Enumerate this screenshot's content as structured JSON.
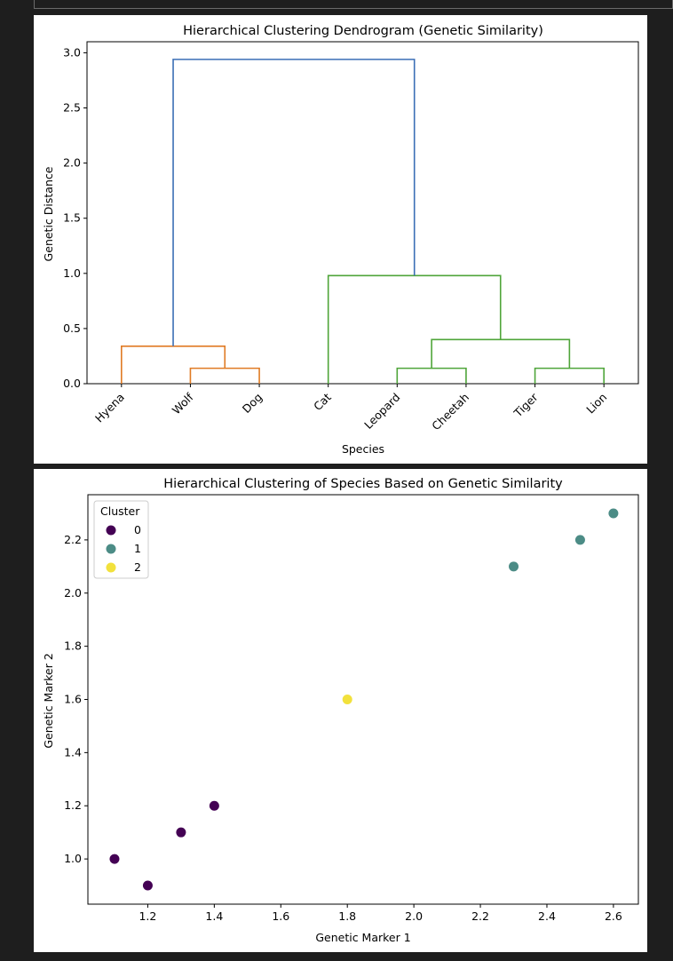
{
  "charts": [
    {
      "type": "dendrogram",
      "title": "Hierarchical Clustering Dendrogram (Genetic Similarity)",
      "xlabel": "Species",
      "ylabel": "Genetic Distance",
      "ylim": [
        0,
        3.1
      ],
      "yticks": [
        "0.0",
        "0.5",
        "1.0",
        "1.5",
        "2.0",
        "2.5",
        "3.0"
      ],
      "ytick_values": [
        0,
        0.5,
        1.0,
        1.5,
        2.0,
        2.5,
        3.0
      ],
      "leaves": [
        "Hyena",
        "Wolf",
        "Dog",
        "Cat",
        "Leopard",
        "Cheetah",
        "Tiger",
        "Lion"
      ],
      "colors": {
        "above_cut": "#3b6fb6",
        "cluster_a": "#e07b24",
        "cluster_b": "#4fa53a"
      },
      "links": [
        {
          "left": 1,
          "right": 2,
          "height": 0.14,
          "color": "cluster_a"
        },
        {
          "left": 4,
          "right": 5,
          "height": 0.14,
          "color": "cluster_b"
        },
        {
          "left": 6,
          "right": 7,
          "height": 0.14,
          "color": "cluster_b"
        },
        {
          "left": 0,
          "right": "w-d",
          "height": 0.34,
          "color": "cluster_a"
        },
        {
          "left": "l-c",
          "right": "t-l",
          "height": 0.4,
          "color": "cluster_b"
        },
        {
          "left": 3,
          "right": "lc-tl",
          "height": 0.98,
          "color": "cluster_b"
        },
        {
          "left": "hwd",
          "right": "cat-group",
          "height": 2.94,
          "color": "above_cut"
        }
      ]
    },
    {
      "type": "scatter",
      "title": "Hierarchical Clustering of Species Based on Genetic Similarity",
      "xlabel": "Genetic Marker 1",
      "ylabel": "Genetic Marker 2",
      "xlim": [
        1.02,
        2.675
      ],
      "ylim": [
        0.83,
        2.37
      ],
      "xticks": [
        "1.2",
        "1.4",
        "1.6",
        "1.8",
        "2.0",
        "2.2",
        "2.4",
        "2.6"
      ],
      "xtick_values": [
        1.2,
        1.4,
        1.6,
        1.8,
        2.0,
        2.2,
        2.4,
        2.6
      ],
      "yticks": [
        "1.0",
        "1.2",
        "1.4",
        "1.6",
        "1.8",
        "2.0",
        "2.2"
      ],
      "ytick_values": [
        1.0,
        1.2,
        1.4,
        1.6,
        1.8,
        2.0,
        2.2
      ],
      "legend": {
        "title": "Cluster",
        "placement": "top-left",
        "entries": [
          "0",
          "1",
          "2"
        ]
      },
      "cluster_colors": {
        "0": "#440154",
        "1": "#4c8c86",
        "2": "#f2e13c"
      },
      "points": [
        {
          "x": 1.1,
          "y": 1.0,
          "cluster": "0"
        },
        {
          "x": 1.2,
          "y": 0.9,
          "cluster": "0"
        },
        {
          "x": 1.3,
          "y": 1.1,
          "cluster": "0"
        },
        {
          "x": 1.4,
          "y": 1.2,
          "cluster": "0"
        },
        {
          "x": 1.8,
          "y": 1.6,
          "cluster": "2"
        },
        {
          "x": 2.3,
          "y": 2.1,
          "cluster": "1"
        },
        {
          "x": 2.5,
          "y": 2.2,
          "cluster": "1"
        },
        {
          "x": 2.6,
          "y": 2.3,
          "cluster": "1"
        }
      ]
    }
  ]
}
